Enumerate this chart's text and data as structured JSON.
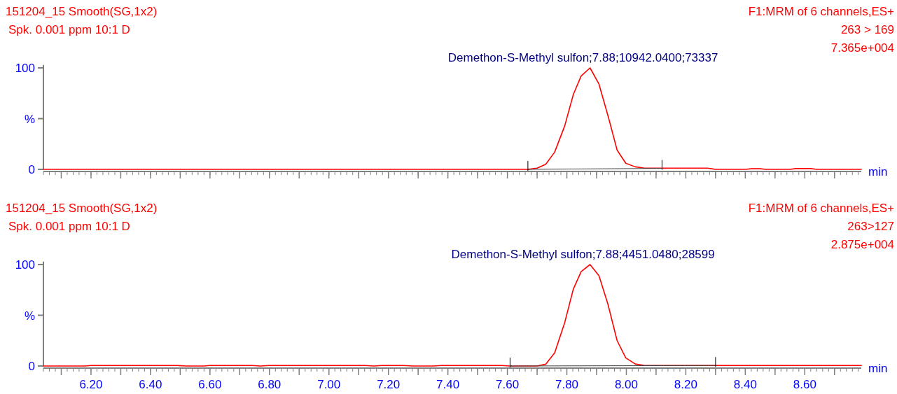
{
  "chart_data": [
    {
      "type": "line",
      "title": "151204_15 Smooth(SG,1x2)",
      "subtitle": "Spk. 0.001 ppm 10:1 D",
      "xlabel": "min",
      "ylabel": "%",
      "annotations": [
        "F1:MRM of 6 channels,ES+",
        "263 > 169",
        "7.365e+004",
        {
          "text": "Demethon-S-Methyl sulfon;7.88;10942.0400;73337",
          "x": 7.878,
          "y": 100
        }
      ],
      "xlim": [
        6.04,
        8.79
      ],
      "xticks": [
        {
          "value": 6.1,
          "label": null
        },
        {
          "value": 6.2,
          "label": null
        },
        {
          "value": 6.3,
          "label": null
        },
        {
          "value": 6.4,
          "label": null
        },
        {
          "value": 6.5,
          "label": null
        },
        {
          "value": 6.6,
          "label": null
        },
        {
          "value": 6.7,
          "label": null
        },
        {
          "value": 6.8,
          "label": null
        },
        {
          "value": 6.9,
          "label": null
        },
        {
          "value": 7.0,
          "label": null
        },
        {
          "value": 7.1,
          "label": null
        },
        {
          "value": 7.2,
          "label": null
        },
        {
          "value": 7.3,
          "label": null
        },
        {
          "value": 7.4,
          "label": null
        },
        {
          "value": 7.5,
          "label": null
        },
        {
          "value": 7.6,
          "label": null
        },
        {
          "value": 7.7,
          "label": null
        },
        {
          "value": 7.8,
          "label": null
        },
        {
          "value": 7.9,
          "label": null
        },
        {
          "value": 8.0,
          "label": null
        },
        {
          "value": 8.1,
          "label": null
        },
        {
          "value": 8.2,
          "label": null
        },
        {
          "value": 8.3,
          "label": null
        },
        {
          "value": 8.4,
          "label": null
        },
        {
          "value": 8.5,
          "label": null
        },
        {
          "value": 8.6,
          "label": null
        },
        {
          "value": 8.7,
          "label": null
        }
      ],
      "ylim": [
        0,
        103
      ],
      "yticks": [
        {
          "value": 0,
          "label": "0"
        },
        {
          "value": 50,
          "label": null
        },
        {
          "value": 100,
          "label": "100"
        }
      ],
      "tick_labels": "y",
      "grid": false,
      "series": [
        {
          "color": "#ff0000",
          "x": [
            6.04,
            7.669,
            7.7,
            7.729,
            7.759,
            7.793,
            7.822,
            7.848,
            7.878,
            7.908,
            7.94,
            7.969,
            7.998,
            8.03,
            8.061,
            8.273,
            8.3,
            8.4,
            8.42,
            8.45,
            8.47,
            8.55,
            8.57,
            8.62,
            8.64,
            8.79
          ],
          "values": [
            0,
            0,
            1.2,
            5,
            17,
            43,
            74,
            92,
            100,
            84,
            51,
            19,
            6,
            2.5,
            1.2,
            1.2,
            0,
            0,
            0.6,
            0.6,
            0,
            0,
            0.8,
            0.8,
            0,
            0
          ]
        },
        {
          "color": "#404040",
          "x": [
            7.669,
            8.12
          ],
          "values": [
            0,
            1
          ]
        }
      ]
    },
    {
      "type": "line",
      "title": "151204_15 Smooth(SG,1x2)",
      "subtitle": "Spk. 0.001 ppm 10:1 D",
      "xlabel": "min",
      "ylabel": "%",
      "annotations": [
        "F1:MRM of 6 channels,ES+",
        "263>127",
        "2.875e+004",
        {
          "text": "Demethon-S-Methyl sulfon;7.88;4451.0480;28599",
          "x": 7.878,
          "y": 100
        }
      ],
      "xlim": [
        6.04,
        8.79
      ],
      "xticks": [
        {
          "value": 6.1,
          "label": null
        },
        {
          "value": 6.2,
          "label": "6.20"
        },
        {
          "value": 6.3,
          "label": null
        },
        {
          "value": 6.4,
          "label": "6.40"
        },
        {
          "value": 6.5,
          "label": null
        },
        {
          "value": 6.6,
          "label": "6.60"
        },
        {
          "value": 6.7,
          "label": null
        },
        {
          "value": 6.8,
          "label": "6.80"
        },
        {
          "value": 6.9,
          "label": null
        },
        {
          "value": 7.0,
          "label": "7.00"
        },
        {
          "value": 7.1,
          "label": null
        },
        {
          "value": 7.2,
          "label": "7.20"
        },
        {
          "value": 7.3,
          "label": null
        },
        {
          "value": 7.4,
          "label": "7.40"
        },
        {
          "value": 7.5,
          "label": null
        },
        {
          "value": 7.6,
          "label": "7.60"
        },
        {
          "value": 7.7,
          "label": null
        },
        {
          "value": 7.8,
          "label": "7.80"
        },
        {
          "value": 7.9,
          "label": null
        },
        {
          "value": 8.0,
          "label": "8.00"
        },
        {
          "value": 8.1,
          "label": null
        },
        {
          "value": 8.2,
          "label": "8.20"
        },
        {
          "value": 8.3,
          "label": null
        },
        {
          "value": 8.4,
          "label": "8.40"
        },
        {
          "value": 8.5,
          "label": null
        },
        {
          "value": 8.6,
          "label": "8.60"
        },
        {
          "value": 8.7,
          "label": null
        }
      ],
      "ylim": [
        0,
        103
      ],
      "yticks": [
        {
          "value": 0,
          "label": "0"
        },
        {
          "value": 50,
          "label": null
        },
        {
          "value": 100,
          "label": "100"
        }
      ],
      "grid": false,
      "series": [
        {
          "color": "#ff0000",
          "x": [
            6.04,
            6.18,
            6.2,
            6.49,
            6.52,
            6.58,
            6.6,
            6.74,
            6.77,
            6.8,
            7.12,
            7.15,
            7.18,
            7.25,
            7.28,
            7.35,
            7.38,
            7.58,
            7.609,
            7.7,
            7.729,
            7.759,
            7.793,
            7.822,
            7.848,
            7.878,
            7.908,
            7.938,
            7.969,
            7.998,
            8.03,
            8.061,
            8.79
          ],
          "values": [
            0,
            0,
            0.5,
            0.5,
            0,
            0,
            0.5,
            0.5,
            0,
            0.5,
            0.5,
            0,
            0.5,
            0.5,
            0,
            0,
            0.5,
            0.5,
            0,
            0,
            1.8,
            13,
            43,
            76,
            93,
            100,
            89,
            61,
            25,
            8,
            2,
            0.5,
            0.5
          ]
        },
        {
          "color": "#404040",
          "x": [
            7.609,
            8.3
          ],
          "values": [
            0,
            0.5
          ]
        }
      ]
    }
  ]
}
